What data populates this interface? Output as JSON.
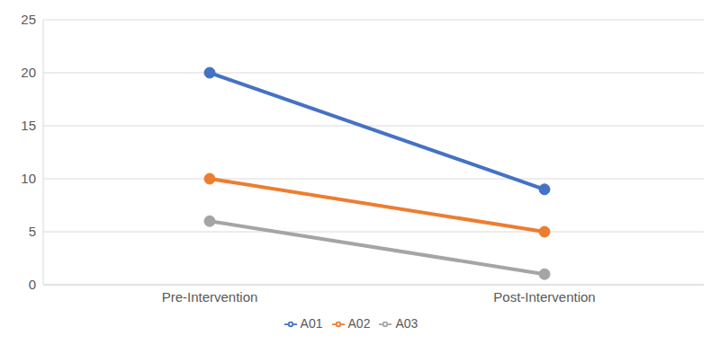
{
  "chart_data": {
    "type": "line",
    "categories": [
      "Pre-Intervention",
      "Post-Intervention"
    ],
    "series": [
      {
        "name": "A01",
        "color": "#4472c4",
        "values": [
          20,
          9
        ]
      },
      {
        "name": "A02",
        "color": "#ed7d31",
        "values": [
          10,
          5
        ]
      },
      {
        "name": "A03",
        "color": "#a5a5a5",
        "values": [
          6,
          1
        ]
      }
    ],
    "ylim": [
      0,
      25
    ],
    "yticks": [
      0,
      5,
      10,
      15,
      20,
      25
    ],
    "grid": true,
    "legend": "bottom",
    "marker": "circle"
  }
}
